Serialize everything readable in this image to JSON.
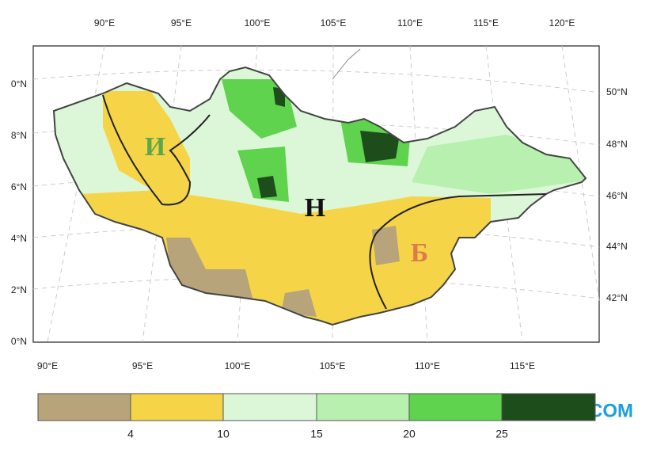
{
  "top_lon_labels": [
    "90°E",
    "95°E",
    "100°E",
    "105°E",
    "110°E",
    "115°E",
    "120°E"
  ],
  "bottom_lon_labels": [
    "90°E",
    "95°E",
    "100°E",
    "105°E",
    "110°E",
    "115°E"
  ],
  "left_lat_labels": [
    "0°N",
    "8°N",
    "6°N",
    "4°N",
    "2°N",
    "0°N"
  ],
  "right_lat_labels": [
    "50°N",
    "48°N",
    "46°N",
    "44°N",
    "42°N"
  ],
  "region_labels": [
    "И",
    "Н",
    "Б"
  ],
  "colorbar_labels": [
    "4",
    "10",
    "15",
    "20",
    "25"
  ],
  "watermark": "KHIIMORI.COM"
}
